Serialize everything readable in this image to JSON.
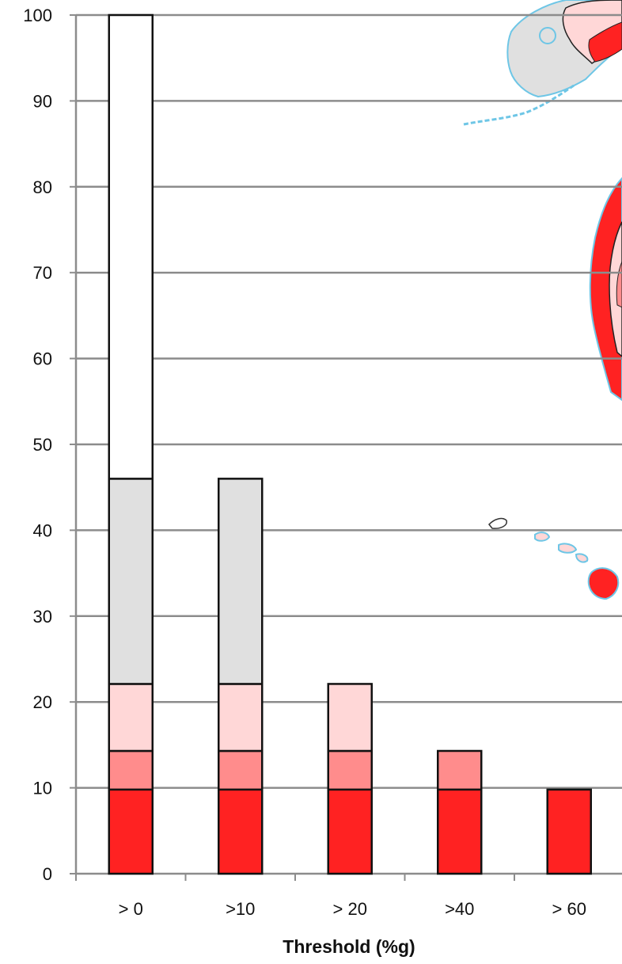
{
  "chart_data": {
    "type": "bar",
    "stacked": true,
    "categories": [
      "> 0",
      ">10",
      "> 20",
      ">40",
      "> 60"
    ],
    "series": [
      {
        "color": "#ff2222",
        "values": [
          9.8,
          9.8,
          9.8,
          9.8,
          9.8
        ]
      },
      {
        "color": "#ff8c8c",
        "values": [
          4.5,
          4.5,
          4.5,
          4.5,
          0
        ]
      },
      {
        "color": "#ffd7d7",
        "values": [
          7.8,
          7.8,
          7.8,
          0,
          0
        ]
      },
      {
        "color": "#e0e0e0",
        "values": [
          23.9,
          23.9,
          0,
          0,
          0
        ]
      },
      {
        "color": "#ffffff",
        "values": [
          54.0,
          0,
          0,
          0,
          0
        ]
      }
    ],
    "yticks": [
      0,
      10,
      20,
      30,
      40,
      50,
      60,
      70,
      80,
      90,
      100
    ],
    "ylim": [
      0,
      100
    ],
    "xlabel": "Threshold (%g)",
    "ylabel": "",
    "grid": true,
    "legend": "none",
    "background_map": {
      "description_icon": "map-icon",
      "fill_colors": [
        "#ff2222",
        "#ff8c8c",
        "#ffd7d7",
        "#e0e0e0"
      ],
      "outline_color": "#6ec6e6"
    }
  }
}
